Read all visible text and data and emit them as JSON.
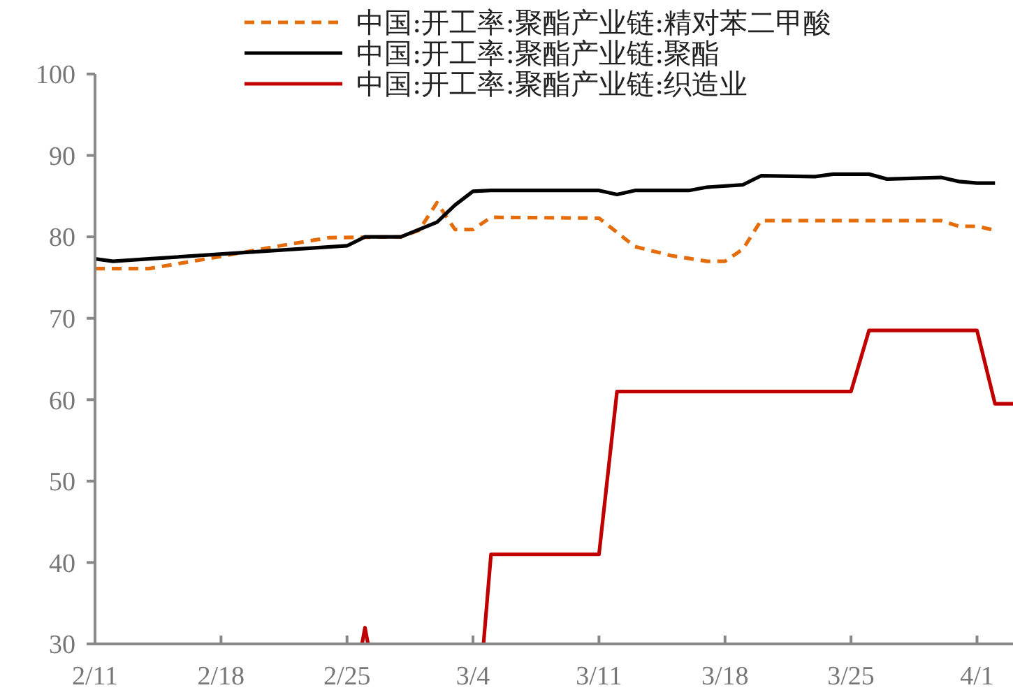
{
  "chart_data": {
    "type": "line",
    "legend": "top",
    "grid": false,
    "xlim": [
      "--02-11",
      "--04-03"
    ],
    "xticks": [
      {
        "value": "--02-11",
        "label": "2/11"
      },
      {
        "value": "--02-18",
        "label": "2/18"
      },
      {
        "value": "--02-25",
        "label": "2/25"
      },
      {
        "value": "--03-04",
        "label": "3/4"
      },
      {
        "value": "--03-11",
        "label": "3/11"
      },
      {
        "value": "--03-18",
        "label": "3/18"
      },
      {
        "value": "--03-25",
        "label": "3/25"
      },
      {
        "value": "--04-01",
        "label": "4/1"
      }
    ],
    "ylim": [
      30,
      100
    ],
    "yticks": [
      30,
      40,
      50,
      60,
      70,
      80,
      90,
      100
    ],
    "series": [
      {
        "name": "中国:开工率:聚酯产业链:精对苯二甲酸",
        "color": "#e46c0a",
        "line_style": "dashed",
        "x": [
          "--02-11",
          "--02-14",
          "--02-18",
          "--02-21",
          "--02-24",
          "--02-28",
          "--03-01",
          "--03-02",
          "--03-03",
          "--03-04",
          "--03-05",
          "--03-11",
          "--03-13",
          "--03-15",
          "--03-17",
          "--03-18",
          "--03-19",
          "--03-20",
          "--03-30",
          "--03-31",
          "--04-01",
          "--04-02"
        ],
        "values": [
          76.1,
          76.1,
          77.6,
          78.8,
          79.9,
          80.0,
          80.8,
          84.2,
          80.9,
          80.9,
          82.4,
          82.3,
          78.8,
          77.7,
          77.0,
          77.0,
          78.5,
          82.0,
          82.0,
          81.3,
          81.3,
          80.8
        ]
      },
      {
        "name": "中国:开工率:聚酯产业链:聚酯",
        "color": "#000000",
        "line_style": "solid",
        "x": [
          "--02-11",
          "--02-12",
          "--02-14",
          "--02-25",
          "--02-26",
          "--02-28",
          "--03-02",
          "--03-03",
          "--03-04",
          "--03-05",
          "--03-11",
          "--03-12",
          "--03-13",
          "--03-16",
          "--03-17",
          "--03-19",
          "--03-20",
          "--03-23",
          "--03-24",
          "--03-26",
          "--03-27",
          "--03-30",
          "--03-31",
          "--04-01",
          "--04-02"
        ],
        "values": [
          77.3,
          77.0,
          77.3,
          78.9,
          80.0,
          80.0,
          81.8,
          83.9,
          85.6,
          85.7,
          85.7,
          85.2,
          85.7,
          85.7,
          86.1,
          86.4,
          87.5,
          87.4,
          87.7,
          87.7,
          87.1,
          87.3,
          86.8,
          86.6,
          86.6
        ]
      },
      {
        "name": "中国:开工率:聚酯产业链:织造业",
        "color": "#c00000",
        "line_style": "solid",
        "x": [
          "--02-25T20:00",
          "--02-26",
          "--02-26T04:00",
          "--03-01",
          "--03-04T14:00",
          "--03-05",
          "--03-11",
          "--03-12",
          "--03-25",
          "--03-26",
          "--04-01",
          "--04-02",
          "--04-03"
        ],
        "values": [
          30,
          32,
          30,
          null,
          30,
          41,
          41,
          61,
          61,
          68.5,
          68.5,
          59.5,
          59.5
        ]
      }
    ]
  }
}
